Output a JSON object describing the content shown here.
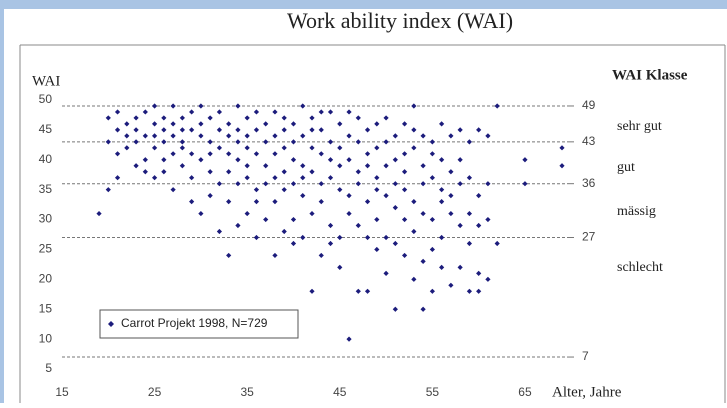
{
  "chart_data": {
    "type": "scatter",
    "title": "Work ability index (WAI)",
    "y_label": "WAI",
    "x_label": "Alter, Jahre",
    "class_header": "WAI Klasse",
    "classes": [
      "sehr gut",
      "gut",
      "mässig",
      "schlecht"
    ],
    "reference_lines": [
      49,
      43,
      36,
      27,
      7
    ],
    "xlim": [
      15,
      69
    ],
    "xticks": [
      15,
      25,
      35,
      45,
      55,
      65
    ],
    "ylim": [
      5,
      50
    ],
    "yticks": [
      5,
      10,
      15,
      20,
      25,
      30,
      35,
      40,
      45,
      50
    ],
    "series": [
      {
        "name": "Carrot Projekt 1998, N=729",
        "color": "#1c1c7c",
        "x": [
          19,
          20,
          20,
          20,
          21,
          21,
          21,
          21,
          22,
          22,
          22,
          23,
          23,
          23,
          23,
          24,
          24,
          24,
          24,
          25,
          25,
          25,
          25,
          25,
          26,
          26,
          26,
          26,
          26,
          27,
          27,
          27,
          27,
          27,
          28,
          28,
          28,
          28,
          28,
          29,
          29,
          29,
          29,
          29,
          30,
          30,
          30,
          30,
          30,
          31,
          31,
          31,
          31,
          31,
          32,
          32,
          32,
          32,
          32,
          33,
          33,
          33,
          33,
          33,
          33,
          34,
          34,
          34,
          34,
          34,
          34,
          35,
          35,
          35,
          35,
          35,
          35,
          36,
          36,
          36,
          36,
          36,
          36,
          37,
          37,
          37,
          37,
          37,
          38,
          38,
          38,
          38,
          38,
          38,
          39,
          39,
          39,
          39,
          39,
          39,
          40,
          40,
          40,
          40,
          40,
          40,
          41,
          41,
          41,
          41,
          41,
          41,
          42,
          42,
          42,
          42,
          42,
          42,
          43,
          43,
          43,
          43,
          43,
          43,
          44,
          44,
          44,
          44,
          44,
          44,
          45,
          45,
          45,
          45,
          45,
          45,
          46,
          46,
          46,
          46,
          46,
          46,
          47,
          47,
          47,
          47,
          47,
          47,
          48,
          48,
          48,
          48,
          48,
          48,
          49,
          49,
          49,
          49,
          49,
          49,
          50,
          50,
          50,
          50,
          50,
          50,
          51,
          51,
          51,
          51,
          51,
          51,
          52,
          52,
          52,
          52,
          52,
          52,
          53,
          53,
          53,
          53,
          53,
          53,
          54,
          54,
          54,
          54,
          54,
          54,
          55,
          55,
          55,
          55,
          55,
          55,
          56,
          56,
          56,
          56,
          56,
          56,
          57,
          57,
          57,
          57,
          57,
          58,
          58,
          58,
          58,
          58,
          59,
          59,
          59,
          59,
          59,
          60,
          60,
          60,
          60,
          60,
          61,
          61,
          61,
          61,
          62,
          62,
          65,
          65,
          69,
          69
        ],
        "values": [
          31,
          35,
          43,
          47,
          45,
          48,
          37,
          41,
          44,
          46,
          42,
          45,
          47,
          43,
          39,
          48,
          44,
          40,
          38,
          46,
          42,
          49,
          37,
          44,
          45,
          43,
          47,
          40,
          38,
          49,
          44,
          41,
          35,
          46,
          47,
          43,
          39,
          45,
          42,
          48,
          45,
          37,
          33,
          41,
          46,
          44,
          40,
          31,
          49,
          43,
          47,
          38,
          34,
          41,
          45,
          42,
          36,
          28,
          48,
          44,
          46,
          38,
          24,
          33,
          41,
          49,
          43,
          40,
          36,
          29,
          45,
          47,
          42,
          37,
          31,
          39,
          44,
          45,
          41,
          35,
          27,
          48,
          33,
          46,
          43,
          39,
          30,
          36,
          48,
          44,
          37,
          33,
          24,
          41,
          45,
          42,
          38,
          28,
          35,
          47,
          46,
          43,
          40,
          30,
          36,
          26,
          49,
          44,
          39,
          34,
          27,
          37,
          47,
          42,
          38,
          18,
          31,
          45,
          45,
          41,
          36,
          24,
          33,
          48,
          48,
          43,
          37,
          29,
          40,
          26,
          46,
          42,
          35,
          27,
          22,
          39,
          44,
          40,
          34,
          10,
          31,
          48,
          47,
          43,
          36,
          18,
          29,
          38,
          45,
          41,
          33,
          18,
          27,
          39,
          46,
          42,
          37,
          30,
          25,
          35,
          43,
          39,
          34,
          27,
          21,
          47,
          44,
          40,
          32,
          15,
          26,
          36,
          46,
          41,
          35,
          24,
          30,
          38,
          45,
          42,
          33,
          20,
          28,
          49,
          44,
          39,
          31,
          15,
          23,
          36,
          43,
          37,
          30,
          18,
          25,
          41,
          46,
          40,
          33,
          22,
          27,
          35,
          44,
          38,
          31,
          19,
          34,
          45,
          40,
          29,
          22,
          36,
          43,
          37,
          18,
          26,
          31,
          45,
          34,
          18,
          29,
          21,
          44,
          30,
          20,
          36,
          49,
          26,
          40,
          36,
          42,
          39
        ]
      }
    ]
  }
}
